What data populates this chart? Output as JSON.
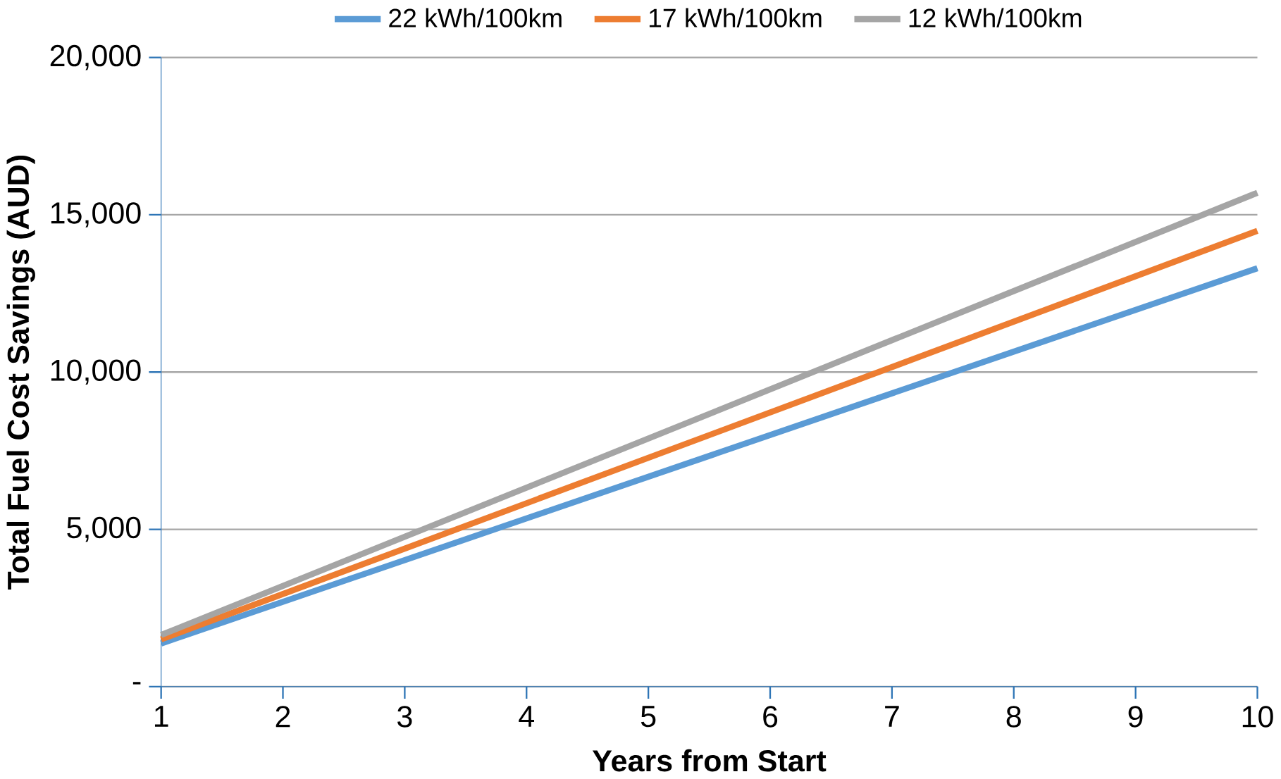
{
  "chart_data": {
    "type": "line",
    "xlabel": "Years from Start",
    "ylabel": "Total Fuel Cost Savings (AUD)",
    "x": [
      1,
      10
    ],
    "series": [
      {
        "name": "22 kWh/100km",
        "color": "#5b9bd5",
        "values": [
          1370,
          13300
        ]
      },
      {
        "name": "17 kWh/100km",
        "color": "#ed7d31",
        "values": [
          1500,
          14490
        ]
      },
      {
        "name": "12 kWh/100km",
        "color": "#a5a5a5",
        "values": [
          1640,
          15700
        ]
      }
    ],
    "xlim": [
      1,
      10
    ],
    "xticks": [
      1,
      2,
      3,
      4,
      5,
      6,
      7,
      8,
      9,
      10
    ],
    "ylim": [
      0,
      20000
    ],
    "yticks": [
      {
        "value": 0,
        "label": "-"
      },
      {
        "value": 5000,
        "label": "5,000"
      },
      {
        "value": 10000,
        "label": "10,000"
      },
      {
        "value": 15000,
        "label": "15,000"
      },
      {
        "value": 20000,
        "label": "20,000"
      }
    ],
    "grid": "y",
    "legend": "top",
    "marker": "none",
    "line_style": "solid"
  }
}
